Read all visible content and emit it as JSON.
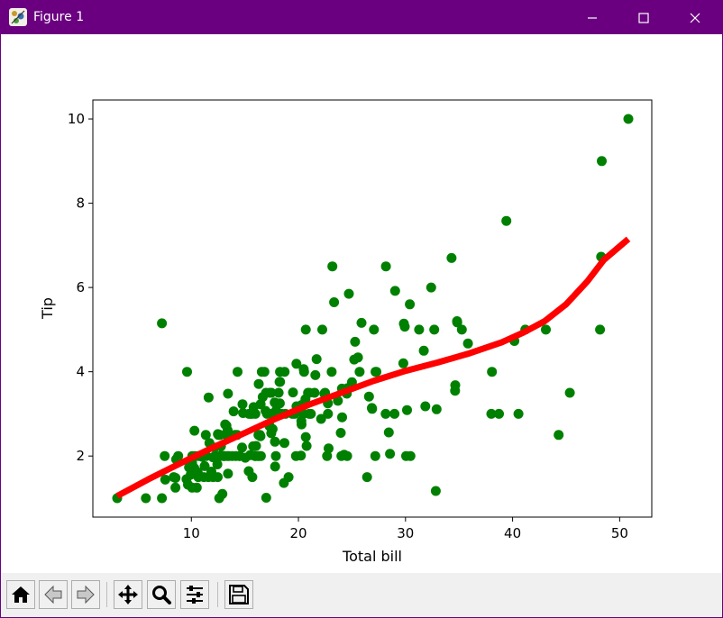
{
  "window": {
    "title": "Figure 1"
  },
  "titlebar_color": "#6a0080",
  "toolbar": {
    "buttons": [
      {
        "name": "home",
        "icon": "home-icon"
      },
      {
        "name": "back",
        "icon": "arrow-left-icon"
      },
      {
        "name": "forward",
        "icon": "arrow-right-icon"
      },
      {
        "name": "pan",
        "icon": "move-icon"
      },
      {
        "name": "zoom",
        "icon": "magnifier-icon"
      },
      {
        "name": "configure",
        "icon": "sliders-icon"
      },
      {
        "name": "save",
        "icon": "floppy-disk-icon"
      }
    ]
  },
  "chart_data": {
    "type": "scatter",
    "title": "",
    "xlabel": "Total bill",
    "ylabel": "Tip",
    "xlim": [
      0.8,
      53.0
    ],
    "ylim": [
      0.55,
      10.45
    ],
    "xticks": [
      10,
      20,
      30,
      40,
      50
    ],
    "yticks": [
      2,
      4,
      6,
      8,
      10
    ],
    "grid": false,
    "point_color": "#008000",
    "curve_color": "#ff0000",
    "points": [
      [
        3.07,
        1.0
      ],
      [
        5.75,
        1.0
      ],
      [
        7.25,
        1.0
      ],
      [
        7.25,
        5.15
      ],
      [
        7.51,
        2.0
      ],
      [
        7.56,
        1.44
      ],
      [
        8.35,
        1.5
      ],
      [
        8.51,
        1.25
      ],
      [
        8.52,
        1.48
      ],
      [
        8.58,
        1.92
      ],
      [
        8.77,
        2.0
      ],
      [
        9.55,
        1.45
      ],
      [
        9.6,
        4.0
      ],
      [
        9.68,
        1.32
      ],
      [
        9.78,
        1.73
      ],
      [
        9.94,
        1.56
      ],
      [
        10.07,
        1.25
      ],
      [
        10.07,
        1.83
      ],
      [
        10.09,
        2.0
      ],
      [
        10.27,
        1.71
      ],
      [
        10.29,
        2.6
      ],
      [
        10.33,
        1.67
      ],
      [
        10.34,
        1.66
      ],
      [
        10.34,
        2.0
      ],
      [
        10.51,
        1.25
      ],
      [
        10.59,
        1.61
      ],
      [
        10.63,
        2.0
      ],
      [
        10.65,
        1.5
      ],
      [
        11.02,
        1.98
      ],
      [
        11.17,
        1.5
      ],
      [
        11.24,
        1.76
      ],
      [
        11.35,
        2.5
      ],
      [
        11.38,
        2.0
      ],
      [
        11.59,
        1.5
      ],
      [
        11.61,
        3.39
      ],
      [
        11.69,
        2.31
      ],
      [
        11.87,
        1.63
      ],
      [
        12.02,
        1.97
      ],
      [
        12.03,
        1.5
      ],
      [
        12.16,
        2.2
      ],
      [
        12.26,
        2.0
      ],
      [
        12.43,
        1.8
      ],
      [
        12.46,
        1.5
      ],
      [
        12.48,
        2.52
      ],
      [
        12.54,
        2.5
      ],
      [
        12.6,
        1.0
      ],
      [
        12.66,
        2.5
      ],
      [
        12.69,
        2.0
      ],
      [
        12.74,
        2.01
      ],
      [
        12.76,
        2.23
      ],
      [
        12.9,
        1.1
      ],
      [
        13.0,
        2.0
      ],
      [
        13.03,
        2.0
      ],
      [
        13.13,
        2.0
      ],
      [
        13.16,
        2.75
      ],
      [
        13.27,
        2.5
      ],
      [
        13.28,
        2.72
      ],
      [
        13.37,
        2.0
      ],
      [
        13.39,
        2.61
      ],
      [
        13.42,
        3.48
      ],
      [
        13.42,
        1.58
      ],
      [
        13.51,
        2.0
      ],
      [
        13.81,
        2.0
      ],
      [
        13.94,
        3.06
      ],
      [
        14.07,
        2.5
      ],
      [
        14.15,
        2.0
      ],
      [
        14.26,
        2.5
      ],
      [
        14.31,
        4.0
      ],
      [
        14.48,
        2.0
      ],
      [
        14.52,
        2.0
      ],
      [
        14.73,
        2.2
      ],
      [
        14.78,
        3.23
      ],
      [
        14.83,
        3.02
      ],
      [
        15.04,
        1.96
      ],
      [
        15.36,
        1.64
      ],
      [
        15.38,
        3.0
      ],
      [
        15.48,
        2.02
      ],
      [
        15.53,
        3.0
      ],
      [
        15.69,
        1.5
      ],
      [
        15.69,
        3.0
      ],
      [
        15.77,
        2.23
      ],
      [
        15.81,
        3.16
      ],
      [
        15.95,
        2.0
      ],
      [
        15.98,
        3.0
      ],
      [
        16.0,
        2.0
      ],
      [
        16.04,
        2.24
      ],
      [
        16.21,
        2.0
      ],
      [
        16.27,
        2.5
      ],
      [
        16.29,
        3.71
      ],
      [
        16.31,
        2.0
      ],
      [
        16.4,
        2.5
      ],
      [
        16.45,
        2.47
      ],
      [
        16.47,
        3.23
      ],
      [
        16.49,
        2.0
      ],
      [
        16.58,
        4.0
      ],
      [
        16.66,
        3.4
      ],
      [
        16.82,
        4.0
      ],
      [
        16.93,
        3.07
      ],
      [
        16.97,
        3.5
      ],
      [
        16.99,
        1.01
      ],
      [
        17.07,
        3.0
      ],
      [
        17.26,
        2.74
      ],
      [
        17.29,
        2.71
      ],
      [
        17.31,
        3.5
      ],
      [
        17.46,
        2.54
      ],
      [
        17.47,
        3.5
      ],
      [
        17.51,
        3.0
      ],
      [
        17.59,
        2.64
      ],
      [
        17.78,
        3.27
      ],
      [
        17.81,
        2.34
      ],
      [
        17.82,
        1.75
      ],
      [
        17.89,
        2.0
      ],
      [
        17.92,
        3.08
      ],
      [
        18.04,
        3.0
      ],
      [
        18.15,
        3.5
      ],
      [
        18.24,
        3.76
      ],
      [
        18.26,
        3.25
      ],
      [
        18.28,
        4.0
      ],
      [
        18.29,
        3.76
      ],
      [
        18.43,
        3.0
      ],
      [
        18.64,
        1.36
      ],
      [
        18.69,
        2.31
      ],
      [
        18.71,
        4.0
      ],
      [
        18.78,
        3.0
      ],
      [
        19.08,
        1.5
      ],
      [
        19.44,
        3.0
      ],
      [
        19.49,
        3.51
      ],
      [
        19.65,
        3.0
      ],
      [
        19.77,
        2.0
      ],
      [
        19.81,
        4.19
      ],
      [
        19.82,
        3.18
      ],
      [
        20.08,
        3.15
      ],
      [
        20.23,
        2.01
      ],
      [
        20.27,
        2.83
      ],
      [
        20.29,
        2.75
      ],
      [
        20.29,
        3.21
      ],
      [
        20.45,
        3.0
      ],
      [
        20.49,
        4.06
      ],
      [
        20.53,
        4.0
      ],
      [
        20.65,
        3.35
      ],
      [
        20.69,
        2.45
      ],
      [
        20.69,
        5.0
      ],
      [
        20.76,
        2.24
      ],
      [
        20.9,
        3.5
      ],
      [
        21.01,
        3.5
      ],
      [
        21.01,
        3.0
      ],
      [
        21.16,
        3.0
      ],
      [
        21.5,
        3.5
      ],
      [
        21.58,
        3.92
      ],
      [
        21.7,
        4.3
      ],
      [
        22.12,
        2.88
      ],
      [
        22.23,
        5.0
      ],
      [
        22.42,
        3.48
      ],
      [
        22.49,
        3.5
      ],
      [
        22.67,
        2.0
      ],
      [
        22.75,
        3.25
      ],
      [
        22.76,
        3.0
      ],
      [
        22.82,
        2.18
      ],
      [
        23.1,
        4.0
      ],
      [
        23.17,
        6.5
      ],
      [
        23.33,
        5.65
      ],
      [
        23.68,
        3.31
      ],
      [
        23.95,
        2.55
      ],
      [
        24.01,
        2.0
      ],
      [
        24.06,
        3.6
      ],
      [
        24.08,
        2.92
      ],
      [
        24.27,
        2.03
      ],
      [
        24.52,
        3.48
      ],
      [
        24.55,
        2.0
      ],
      [
        24.59,
        3.61
      ],
      [
        24.71,
        5.85
      ],
      [
        25.0,
        3.75
      ],
      [
        25.21,
        4.29
      ],
      [
        25.29,
        4.71
      ],
      [
        25.56,
        4.34
      ],
      [
        25.71,
        4.0
      ],
      [
        25.89,
        5.16
      ],
      [
        26.41,
        1.5
      ],
      [
        26.59,
        3.41
      ],
      [
        26.86,
        3.14
      ],
      [
        26.88,
        3.12
      ],
      [
        27.05,
        5.0
      ],
      [
        27.18,
        2.0
      ],
      [
        27.2,
        4.0
      ],
      [
        27.28,
        4.0
      ],
      [
        28.15,
        3.0
      ],
      [
        28.17,
        6.5
      ],
      [
        28.44,
        2.56
      ],
      [
        28.55,
        2.05
      ],
      [
        28.97,
        3.0
      ],
      [
        29.03,
        5.92
      ],
      [
        29.8,
        4.2
      ],
      [
        29.85,
        5.14
      ],
      [
        29.93,
        5.07
      ],
      [
        30.06,
        2.0
      ],
      [
        30.14,
        3.09
      ],
      [
        30.4,
        5.6
      ],
      [
        30.46,
        2.0
      ],
      [
        31.27,
        5.0
      ],
      [
        31.71,
        4.5
      ],
      [
        31.85,
        3.18
      ],
      [
        32.4,
        6.0
      ],
      [
        32.68,
        5.0
      ],
      [
        32.83,
        1.17
      ],
      [
        32.9,
        3.11
      ],
      [
        34.3,
        6.7
      ],
      [
        34.63,
        3.55
      ],
      [
        34.65,
        3.68
      ],
      [
        34.81,
        5.2
      ],
      [
        34.83,
        5.17
      ],
      [
        35.26,
        5.0
      ],
      [
        35.83,
        4.67
      ],
      [
        38.01,
        3.0
      ],
      [
        38.07,
        4.0
      ],
      [
        38.73,
        3.0
      ],
      [
        39.42,
        7.58
      ],
      [
        40.17,
        4.73
      ],
      [
        40.55,
        3.0
      ],
      [
        41.19,
        5.0
      ],
      [
        43.11,
        5.0
      ],
      [
        44.3,
        2.5
      ],
      [
        45.35,
        3.5
      ],
      [
        48.17,
        5.0
      ],
      [
        48.27,
        6.73
      ],
      [
        48.33,
        9.0
      ],
      [
        50.81,
        10.0
      ]
    ],
    "curve": [
      [
        3.07,
        1.05
      ],
      [
        6.0,
        1.45
      ],
      [
        9.0,
        1.83
      ],
      [
        12.0,
        2.2
      ],
      [
        15.0,
        2.55
      ],
      [
        18.0,
        2.9
      ],
      [
        21.0,
        3.22
      ],
      [
        24.0,
        3.5
      ],
      [
        27.0,
        3.78
      ],
      [
        30.0,
        4.02
      ],
      [
        33.0,
        4.22
      ],
      [
        36.0,
        4.44
      ],
      [
        39.0,
        4.7
      ],
      [
        41.0,
        4.93
      ],
      [
        43.0,
        5.2
      ],
      [
        45.0,
        5.6
      ],
      [
        47.0,
        6.15
      ],
      [
        48.5,
        6.65
      ],
      [
        50.81,
        7.15
      ]
    ]
  }
}
